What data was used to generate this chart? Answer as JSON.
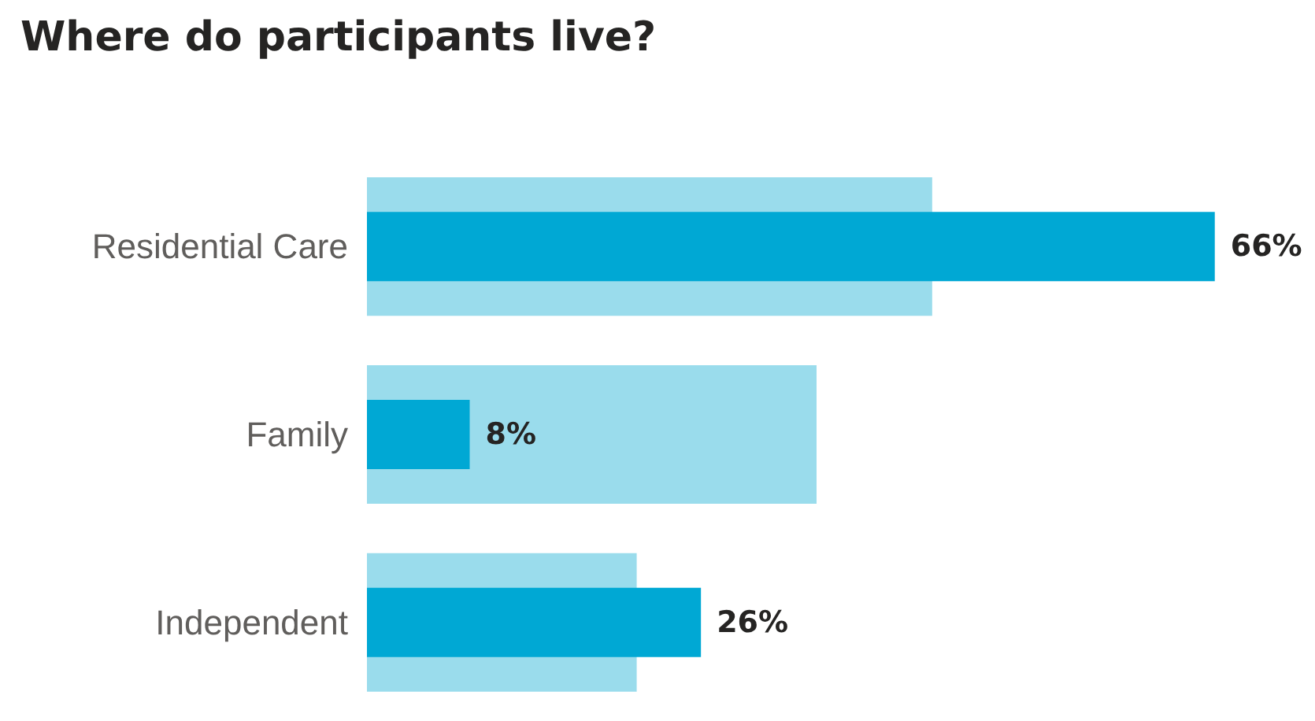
{
  "chart_data": {
    "type": "bar",
    "orientation": "horizontal",
    "title": "Where do participants live?",
    "categories": [
      "Residential Care",
      "Family",
      "Independent"
    ],
    "series": [
      {
        "color": "#9adcec",
        "values": [
          44,
          35,
          21
        ]
      },
      {
        "color": "#00a8d4",
        "values": [
          66,
          8,
          26
        ],
        "value_labels": [
          "66%",
          "8%",
          "26%"
        ]
      }
    ],
    "tick_labels": "y"
  }
}
